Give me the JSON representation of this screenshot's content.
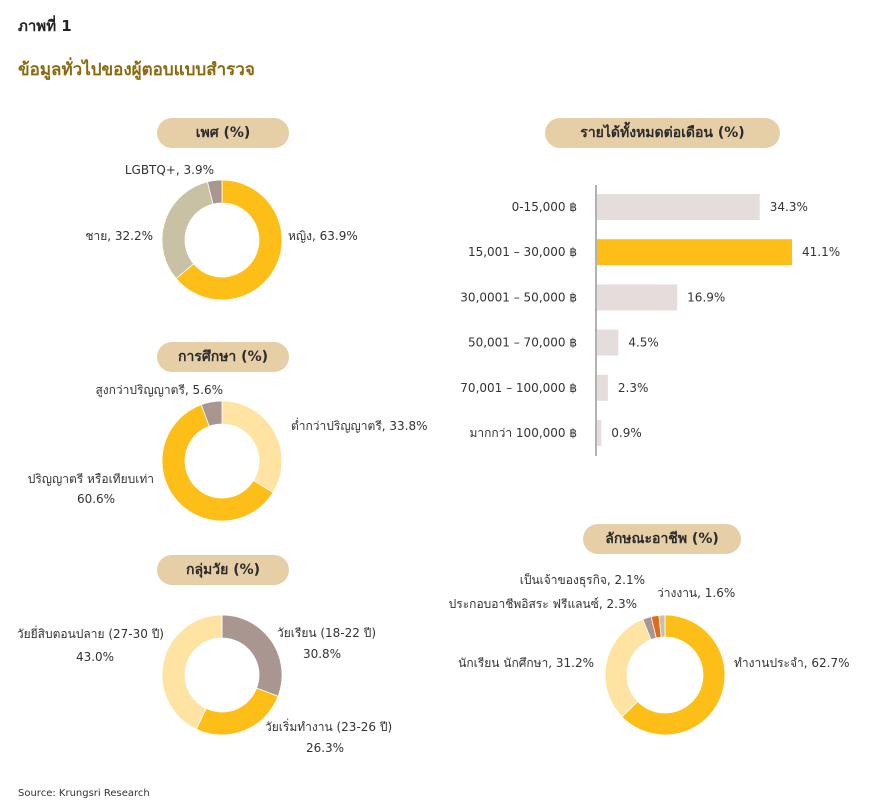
{
  "figure_label": "ภาพที่ 1",
  "title": "ข้อมูลทั่วไปของผู้ตอบแบบสำรวจ",
  "source": "Source: Krungsri Research",
  "colors": {
    "gold": "#FDBE17",
    "light_gold": "#FEE3A2",
    "taupe": "#A99690",
    "khaki": "#C9C1A3",
    "pale_bar": "#E5DDDB",
    "orange": "#E06B1B",
    "pill_bg": "#E6CFA6",
    "title_color": "#8A6A10"
  },
  "chart_data": [
    {
      "type": "pie",
      "title": "เพศ (%)",
      "slices": [
        {
          "label": "หญิง, 63.9%",
          "value": 63.9,
          "color": "#FDBE17"
        },
        {
          "label": "ชาย, 32.2%",
          "value": 32.2,
          "color": "#C9C1A3"
        },
        {
          "label": "LGBTQ+, 3.9%",
          "value": 3.9,
          "color": "#A99690"
        }
      ]
    },
    {
      "type": "pie",
      "title": "การศึกษา (%)",
      "slices": [
        {
          "label": "ต่ำกว่าปริญญาตรี, 33.8%",
          "value": 33.8,
          "color": "#FEE3A2"
        },
        {
          "label": "ปริญญาตรี หรือเทียบเท่า 60.6%",
          "value": 60.6,
          "color": "#FDBE17"
        },
        {
          "label": "สูงกว่าปริญญาตรี, 5.6%",
          "value": 5.6,
          "color": "#A99690"
        }
      ]
    },
    {
      "type": "pie",
      "title": "กลุ่มวัย (%)",
      "slices": [
        {
          "label": "วัยเรียน (18-22 ปี) 30.8%",
          "value": 30.8,
          "color": "#A99690"
        },
        {
          "label": "วัยเริ่มทำงาน (23-26 ปี) 26.3%",
          "value": 26.3,
          "color": "#FDBE17"
        },
        {
          "label": "วัยยี่สิบตอนปลาย (27-30 ปี) 43.0%",
          "value": 43.0,
          "color": "#FEE3A2"
        }
      ]
    },
    {
      "type": "bar",
      "title": "รายได้ทั้งหมดต่อเดือน (%)",
      "categories": [
        "0-15,000 ฿",
        "15,001 – 30,000 ฿",
        "30,0001 – 50,000 ฿",
        "50,001 – 70,000 ฿",
        "70,001 – 100,000 ฿",
        "มากกว่า 100,000 ฿"
      ],
      "values": [
        34.3,
        41.1,
        16.9,
        4.5,
        2.3,
        0.9
      ],
      "value_labels": [
        "34.3%",
        "41.1%",
        "16.9%",
        "4.5%",
        "2.3%",
        "0.9%"
      ],
      "colors": [
        "#E5DDDB",
        "#FDBE17",
        "#E5DDDB",
        "#E5DDDB",
        "#E5DDDB",
        "#E5DDDB"
      ],
      "orientation": "horizontal",
      "xlim": [
        0,
        41.1
      ]
    },
    {
      "type": "pie",
      "title": "ลักษณะอาชีพ (%)",
      "slices": [
        {
          "label": "ทำงานประจำ, 62.7%",
          "value": 62.7,
          "color": "#FDBE17"
        },
        {
          "label": "นักเรียน นักศึกษา, 31.2%",
          "value": 31.2,
          "color": "#FEE3A2"
        },
        {
          "label": "ประกอบอาชีพอิสระ ฟรีแลนซ์, 2.3%",
          "value": 2.3,
          "color": "#A99690"
        },
        {
          "label": "เป็นเจ้าของธุรกิจ, 2.1%",
          "value": 2.1,
          "color": "#E06B1B"
        },
        {
          "label": "ว่างงาน, 1.6%",
          "value": 1.6,
          "color": "#C9C1A3"
        }
      ]
    }
  ]
}
